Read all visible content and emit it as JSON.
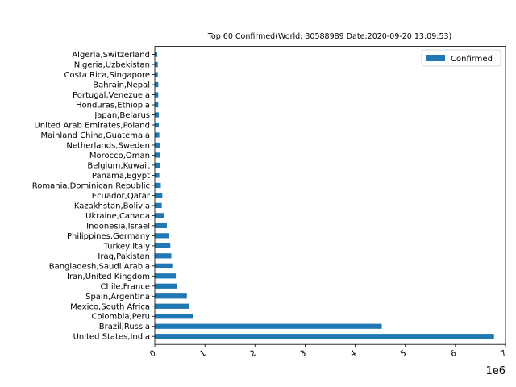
{
  "chart_data": {
    "type": "bar",
    "orientation": "horizontal",
    "title": "Top 60 Confirmed(World: 30588989 Date:2020-09-20 13:09:53)",
    "xlabel": "",
    "ylabel": "",
    "x_offset_label": "1e6",
    "xlim": [
      0,
      7.0
    ],
    "xticks": [
      "0",
      "1",
      "2",
      "3",
      "4",
      "5",
      "6",
      "7"
    ],
    "grid": false,
    "legend_position": "upper right",
    "categories": [
      "United States,India",
      "Brazil,Russia",
      "Colombia,Peru",
      "Mexico,South Africa",
      "Spain,Argentina",
      "Chile,France",
      "Iran,United Kingdom",
      "Bangladesh,Saudi Arabia",
      "Iraq,Pakistan",
      "Turkey,Italy",
      "Philippines,Germany",
      "Indonesia,Israel",
      "Ukraine,Canada",
      "Kazakhstan,Bolivia",
      "Ecuador,Qatar",
      "Romania,Dominican Republic",
      "Panama,Egypt",
      "Belgium,Kuwait",
      "Morocco,Oman",
      "Netherlands,Sweden",
      "Mainland China,Guatemala",
      "United Arab Emirates,Poland",
      "Japan,Belarus",
      "Honduras,Ethiopia",
      "Portugal,Venezuela",
      "Bahrain,Nepal",
      "Costa Rica,Singapore",
      "Nigeria,Uzbekistan",
      "Algeria,Switzerland"
    ],
    "series": [
      {
        "name": "Confirmed",
        "color": "#1f77b4",
        "values": [
          6.77,
          4.53,
          0.76,
          0.69,
          0.64,
          0.44,
          0.42,
          0.35,
          0.33,
          0.31,
          0.28,
          0.24,
          0.18,
          0.14,
          0.15,
          0.12,
          0.09,
          0.1,
          0.1,
          0.1,
          0.09,
          0.08,
          0.08,
          0.07,
          0.07,
          0.07,
          0.06,
          0.06,
          0.05
        ]
      }
    ]
  }
}
